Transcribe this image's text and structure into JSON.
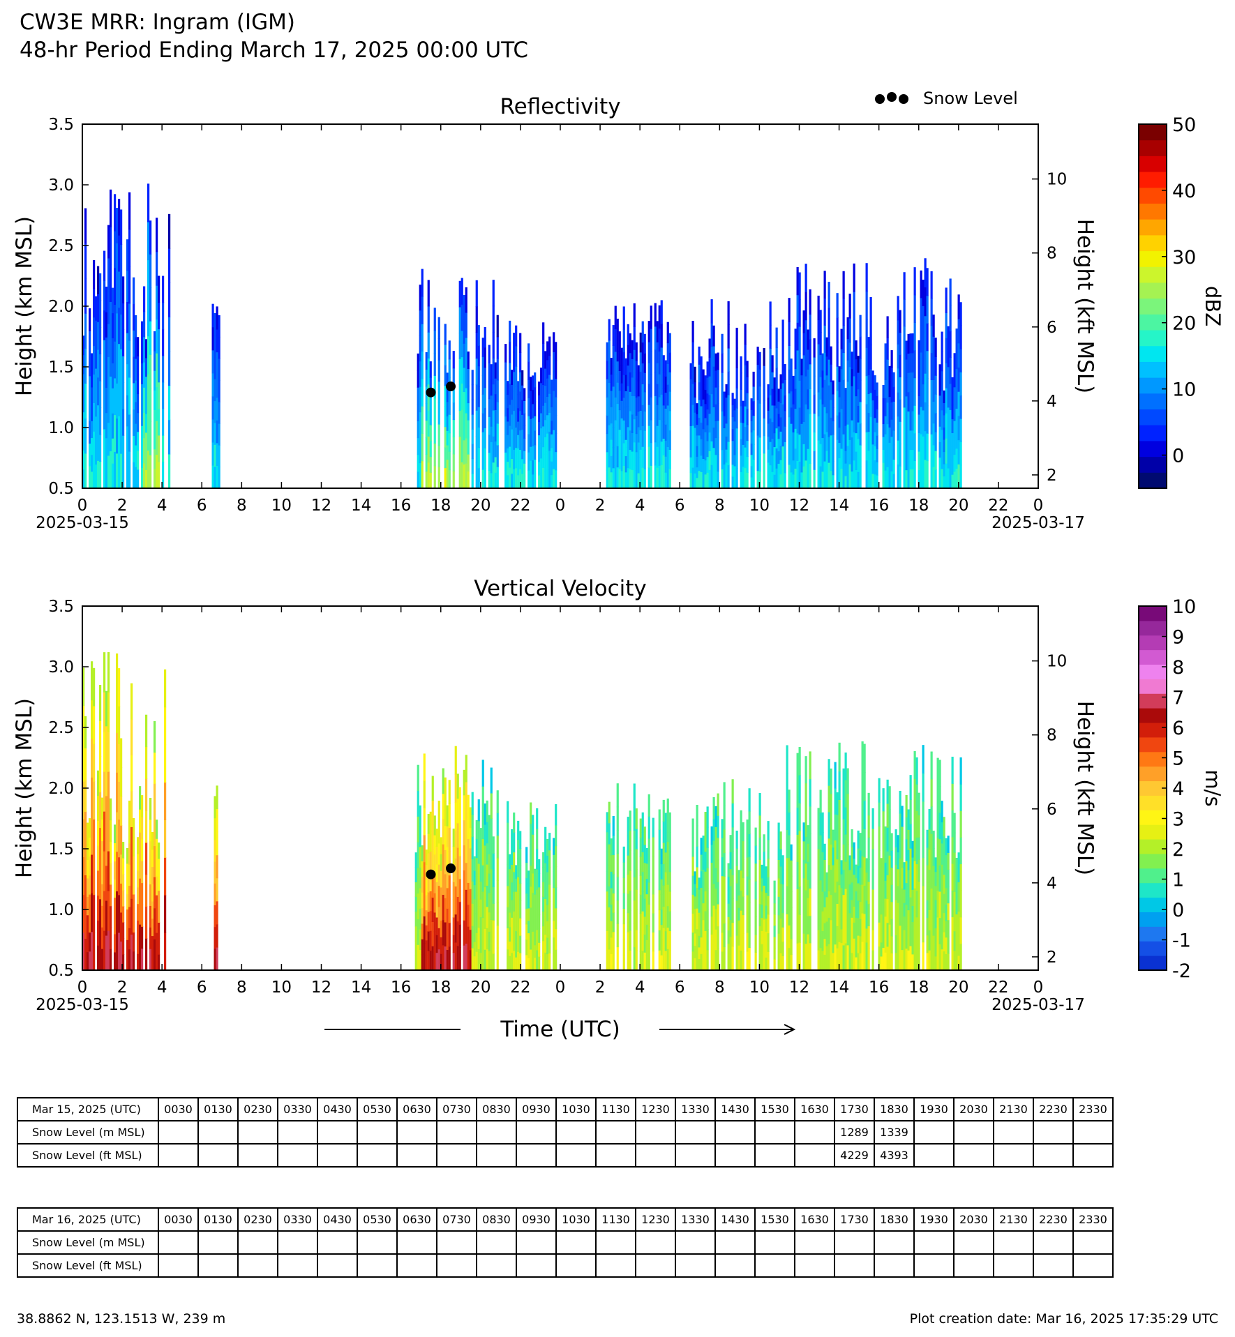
{
  "header": {
    "title_line1": "CW3E MRR: Ingram (IGM)",
    "title_line2": "48-hr Period Ending March 17, 2025 00:00 UTC"
  },
  "legend": {
    "snow_level_label": "Snow Level"
  },
  "x_axis": {
    "label": "Time (UTC)",
    "tick_labels": [
      "0",
      "2",
      "4",
      "6",
      "8",
      "10",
      "12",
      "14",
      "16",
      "18",
      "20",
      "22",
      "0",
      "2",
      "4",
      "6",
      "8",
      "10",
      "12",
      "14",
      "16",
      "18",
      "20",
      "22",
      "0"
    ],
    "start_date": "2025-03-15",
    "end_date": "2025-03-17"
  },
  "chart_data": [
    {
      "type": "heatmap",
      "title": "Reflectivity",
      "xlabel": "Time (UTC)",
      "ylabel": "Height (km MSL)",
      "ylabel_right": "Height (kft MSL)",
      "x_range_hours": [
        0,
        48
      ],
      "ylim": [
        0.5,
        3.5
      ],
      "y_ticks": [
        "0.5",
        "1.0",
        "1.5",
        "2.0",
        "2.5",
        "3.0",
        "3.5"
      ],
      "y2_ticks": [
        "2",
        "4",
        "6",
        "8",
        "10"
      ],
      "colorbar": {
        "label": "dBZ",
        "range": [
          -5,
          50
        ],
        "ticks": [
          "0",
          "10",
          "20",
          "30",
          "40",
          "50"
        ],
        "colors": [
          "#000a70",
          "#0000a8",
          "#0000e0",
          "#0022ff",
          "#0049ff",
          "#0070ff",
          "#0098ff",
          "#00c0ff",
          "#00e6f0",
          "#25f5c8",
          "#4cf5a2",
          "#7bf57b",
          "#a5f252",
          "#ccf52c",
          "#f2f200",
          "#ffd200",
          "#ffa600",
          "#ff7800",
          "#ff4a00",
          "#ff1c00",
          "#d80000",
          "#a80000",
          "#7a0000"
        ]
      },
      "echo_periods_hours": [
        [
          0,
          4.4
        ],
        [
          6.5,
          6.9
        ],
        [
          16.7,
          20.8
        ],
        [
          21.2,
          23.8
        ],
        [
          26.3,
          29.5
        ],
        [
          30.5,
          44.1
        ]
      ],
      "snow_level_points": [
        {
          "time_h": 17.5,
          "km": 1.289
        },
        {
          "time_h": 18.5,
          "km": 1.339
        }
      ],
      "grid": false,
      "legend_position": "top-right"
    },
    {
      "type": "heatmap",
      "title": "Vertical Velocity",
      "xlabel": "Time (UTC)",
      "ylabel": "Height (km MSL)",
      "ylabel_right": "Height (kft MSL)",
      "x_range_hours": [
        0,
        48
      ],
      "ylim": [
        0.5,
        3.5
      ],
      "y_ticks": [
        "0.5",
        "1.0",
        "1.5",
        "2.0",
        "2.5",
        "3.0",
        "3.5"
      ],
      "y2_ticks": [
        "2",
        "4",
        "6",
        "8",
        "10"
      ],
      "colorbar": {
        "label": "m/s",
        "range": [
          -2,
          10
        ],
        "ticks": [
          "-2",
          "-1",
          "0",
          "1",
          "2",
          "3",
          "4",
          "5",
          "6",
          "7",
          "8",
          "9",
          "10"
        ],
        "colors": [
          "#0a32d2",
          "#1450e6",
          "#1e78f0",
          "#00a0f0",
          "#00c8e6",
          "#1ee6c8",
          "#50f08c",
          "#82f050",
          "#b4f028",
          "#e6f014",
          "#fff514",
          "#ffe028",
          "#ffc832",
          "#ffa028",
          "#ff7814",
          "#f04610",
          "#d21e0a",
          "#aa0a0a",
          "#d23c5a",
          "#f07ad2",
          "#ee82ee",
          "#d25ad2",
          "#b43cb4",
          "#96289b",
          "#780a78"
        ]
      },
      "echo_periods_hours": [
        [
          0,
          4.4
        ],
        [
          6.5,
          6.9
        ],
        [
          16.7,
          20.8
        ],
        [
          21.2,
          23.8
        ],
        [
          26.3,
          29.5
        ],
        [
          30.5,
          44.1
        ]
      ],
      "snow_level_points": [
        {
          "time_h": 17.5,
          "km": 1.289
        },
        {
          "time_h": 18.5,
          "km": 1.339
        }
      ],
      "grid": false
    }
  ],
  "tables": [
    {
      "date_label": "Mar 15, 2025 (UTC)",
      "m_label": "Snow Level (m MSL)",
      "ft_label": "Snow Level (ft MSL)",
      "times": [
        "0030",
        "0130",
        "0230",
        "0330",
        "0430",
        "0530",
        "0630",
        "0730",
        "0830",
        "0930",
        "1030",
        "1130",
        "1230",
        "1330",
        "1430",
        "1530",
        "1630",
        "1730",
        "1830",
        "1930",
        "2030",
        "2130",
        "2230",
        "2330"
      ],
      "m": [
        "",
        "",
        "",
        "",
        "",
        "",
        "",
        "",
        "",
        "",
        "",
        "",
        "",
        "",
        "",
        "",
        "",
        "1289",
        "1339",
        "",
        "",
        "",
        "",
        ""
      ],
      "ft": [
        "",
        "",
        "",
        "",
        "",
        "",
        "",
        "",
        "",
        "",
        "",
        "",
        "",
        "",
        "",
        "",
        "",
        "4229",
        "4393",
        "",
        "",
        "",
        "",
        ""
      ]
    },
    {
      "date_label": "Mar 16, 2025 (UTC)",
      "m_label": "Snow Level (m MSL)",
      "ft_label": "Snow Level (ft MSL)",
      "times": [
        "0030",
        "0130",
        "0230",
        "0330",
        "0430",
        "0530",
        "0630",
        "0730",
        "0830",
        "0930",
        "1030",
        "1130",
        "1230",
        "1330",
        "1430",
        "1530",
        "1630",
        "1730",
        "1830",
        "1930",
        "2030",
        "2130",
        "2230",
        "2330"
      ],
      "m": [
        "",
        "",
        "",
        "",
        "",
        "",
        "",
        "",
        "",
        "",
        "",
        "",
        "",
        "",
        "",
        "",
        "",
        "",
        "",
        "",
        "",
        "",
        "",
        ""
      ],
      "ft": [
        "",
        "",
        "",
        "",
        "",
        "",
        "",
        "",
        "",
        "",
        "",
        "",
        "",
        "",
        "",
        "",
        "",
        "",
        "",
        "",
        "",
        "",
        "",
        ""
      ]
    }
  ],
  "footer": {
    "location": "38.8862 N, 123.1513 W, 239 m",
    "creation_date": "Plot creation date: Mar 16, 2025 17:35:29 UTC"
  }
}
